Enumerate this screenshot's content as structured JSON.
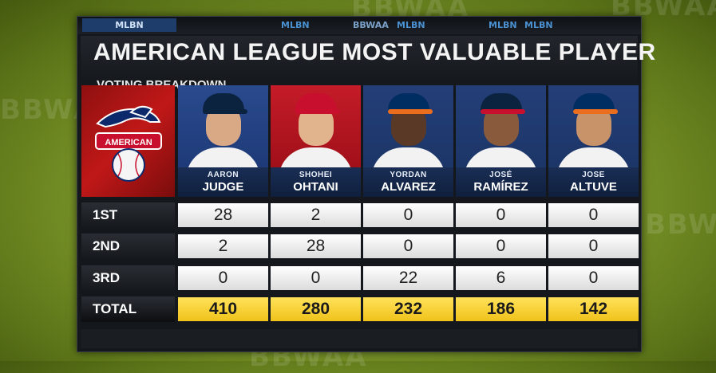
{
  "background_marks": [
    "BBWAA",
    "BBWAA",
    "BBWAA",
    "BBWAA",
    "BBWAA"
  ],
  "ticker": [
    "MLBN",
    "MLBN",
    "MLBN",
    "MLBN",
    "MLBN",
    "BBWAA"
  ],
  "header": {
    "title": "AMERICAN LEAGUE MOST VALUABLE PLAYER",
    "subtitle": "VOTING BREAKDOWN"
  },
  "logo": {
    "label": "AMERICAN"
  },
  "players": [
    {
      "first": "AARON",
      "last": "JUDGE",
      "team_bg": "#1e3a78",
      "cap": "#0c2340",
      "jersey": "#f2f2f2"
    },
    {
      "first": "SHOHEI",
      "last": "OHTANI",
      "team_bg": "#b31520",
      "cap": "#c8102e",
      "jersey": "#f2f2f2"
    },
    {
      "first": "YORDAN",
      "last": "ALVAREZ",
      "team_bg": "#1c3668",
      "cap": "#002d62",
      "jersey": "#f2f2f2"
    },
    {
      "first": "JOSÉ",
      "last": "RAMÍREZ",
      "team_bg": "#1c3668",
      "cap": "#0c2340",
      "jersey": "#f2f2f2"
    },
    {
      "first": "JOSE",
      "last": "ALTUVE",
      "team_bg": "#1c3668",
      "cap": "#002d62",
      "jersey": "#f2f2f2"
    }
  ],
  "rows": [
    {
      "label": "1ST",
      "values": [
        "28",
        "2",
        "0",
        "0",
        "0"
      ]
    },
    {
      "label": "2ND",
      "values": [
        "2",
        "28",
        "0",
        "0",
        "0"
      ]
    },
    {
      "label": "3RD",
      "values": [
        "0",
        "0",
        "22",
        "6",
        "0"
      ]
    },
    {
      "label": "TOTAL",
      "values": [
        "410",
        "280",
        "232",
        "186",
        "142"
      ]
    }
  ]
}
